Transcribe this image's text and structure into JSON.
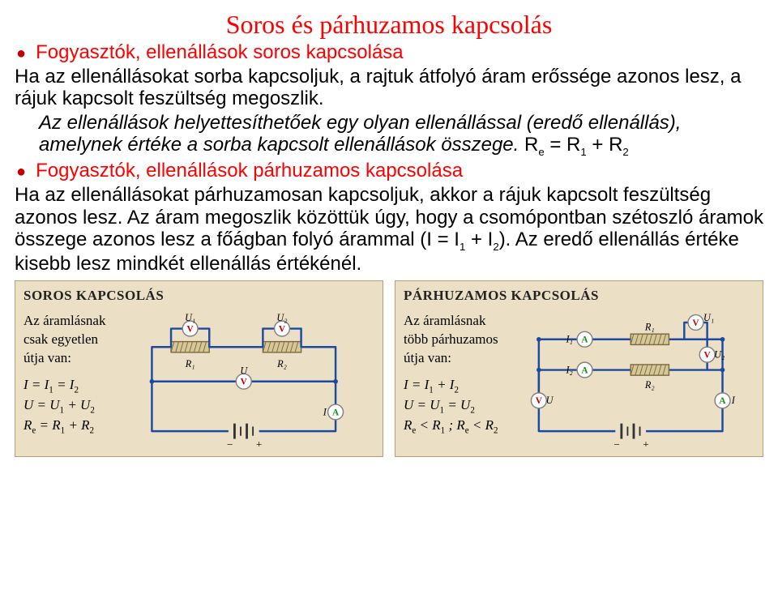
{
  "title": {
    "text": "Soros és párhuzamos kapcsolás",
    "color": "#ff0000"
  },
  "bullets": {
    "b1": "Fogyasztók, ellenállások soros kapcsolása",
    "b2": "Fogyasztók, ellenállások párhuzamos kapcsolása"
  },
  "para": {
    "p1a": "Ha az ellenállásokat sorba kapcsoljuk, a rajtuk átfolyó áram erőssége azonos lesz, a rájuk kapcsolt feszültség megoszlik.",
    "p1b": "Az ellenállások helyettesíthetőek egy olyan ellenállással (eredő ellenállás), amelynek értéke a sorba kapcsolt ellenállások összege.",
    "p1f": "R<sub class=\"sub\">e</sub> = R<sub class=\"sub\">1</sub> + R<sub class=\"sub\">2</sub>",
    "p2a": "Ha az ellenállásokat párhuzamosan kapcsoljuk, akkor a rájuk kapcsolt feszültség azonos lesz. Az áram megoszlik közöttük úgy, hogy a csomópontban szétoszló áramok összege azonos lesz a főágban folyó árammal (I = I<sub class=\"sub\">1</sub> + I<sub class=\"sub\">2</sub>). Az eredő ellenállás értéke kisebb lesz mindkét ellenállás értékénél."
  },
  "panels": {
    "series": {
      "title": "SOROS KAPCSOLÁS",
      "lead1": "Az áramlásnak",
      "lead2": "csak egyetlen",
      "lead3": "útja van:",
      "eq1": "I = I<span class=\"eqsub\">1</span> = I<span class=\"eqsub\">2</span>",
      "eq2": "U = U<span class=\"eqsub\">1</span> + U<span class=\"eqsub\">2</span>",
      "eq3": "R<span class=\"eqsub\">e</span> = R<span class=\"eqsub\">1</span> + R<span class=\"eqsub\">2</span>"
    },
    "parallel": {
      "title": "PÁRHUZAMOS KAPCSOLÁS",
      "lead1": "Az áramlásnak",
      "lead2": "több párhuzamos",
      "lead3": "útja van:",
      "eq1": "I = I<span class=\"eqsub\">1</span> + I<span class=\"eqsub\">2</span>",
      "eq2": "U = U<span class=\"eqsub\">1</span> = U<span class=\"eqsub\">2</span>",
      "eq3": "R<span class=\"eqsub\">e</span> &lt; R<span class=\"eqsub\">1</span> ;  R<span class=\"eqsub\">e</span> &lt; R<span class=\"eqsub\">2</span>"
    }
  },
  "diagram": {
    "bg": "#ebe0c5",
    "wire": "#1b4aa0",
    "wire_width": 2.6,
    "resistor_fill": "#d6c797",
    "resistor_stroke": "#7a6a3e",
    "meter_stroke": "#808080",
    "meter_fill": "#ffffff",
    "meter_v_color": "#c00000",
    "meter_a_color": "#1a8a1a",
    "battery_color": "#333333",
    "label_color": "#000000",
    "label_font": 13
  }
}
